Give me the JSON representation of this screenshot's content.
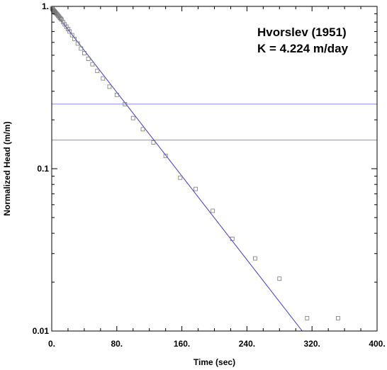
{
  "chart_data": {
    "type": "scatter",
    "xlabel": "Time (sec)",
    "ylabel": "Normalized Head (m/m)",
    "xlim": [
      0,
      400
    ],
    "ylim": [
      0.01,
      1
    ],
    "y_scale": "log",
    "grid": false,
    "x_ticks": [
      0,
      80,
      160,
      240,
      320,
      400
    ],
    "x_tick_labels": [
      "0.",
      "80.",
      "160.",
      "240.",
      "320.",
      "400."
    ],
    "y_ticks": [
      0.01,
      0.1,
      1
    ],
    "y_tick_labels": [
      "0.01",
      "0.1",
      "1."
    ],
    "annotations": [
      "Hvorslev (1951)",
      "K = 4.224 m/day"
    ],
    "reference_lines_y": [
      0.25,
      0.15
    ],
    "fit_line": {
      "x": [
        0,
        308
      ],
      "y": [
        0.97,
        0.01
      ]
    },
    "observed": {
      "x": [
        0.5,
        1,
        1.5,
        2,
        2.5,
        3,
        3.5,
        4,
        4.5,
        5,
        6,
        7,
        8,
        9,
        10,
        11,
        12,
        14,
        16,
        18,
        20,
        22,
        25,
        28,
        32,
        36,
        40,
        45,
        50,
        56,
        63,
        71,
        80,
        90,
        100,
        112,
        125,
        140,
        158,
        177,
        198,
        222,
        250,
        280,
        314,
        352
      ],
      "y": [
        0.975,
        0.96,
        0.955,
        0.945,
        0.94,
        0.935,
        0.93,
        0.92,
        0.915,
        0.91,
        0.9,
        0.89,
        0.875,
        0.865,
        0.85,
        0.84,
        0.83,
        0.8,
        0.775,
        0.75,
        0.725,
        0.7,
        0.665,
        0.63,
        0.59,
        0.55,
        0.515,
        0.475,
        0.44,
        0.4,
        0.36,
        0.32,
        0.285,
        0.25,
        0.205,
        0.175,
        0.145,
        0.12,
        0.088,
        0.075,
        0.055,
        0.037,
        0.028,
        0.021,
        0.012,
        0.012
      ]
    },
    "colors": {
      "fit_line": "#3a3acc",
      "reference_lines": "#8888e8",
      "markers": "#777777",
      "axes": "#000000"
    }
  }
}
